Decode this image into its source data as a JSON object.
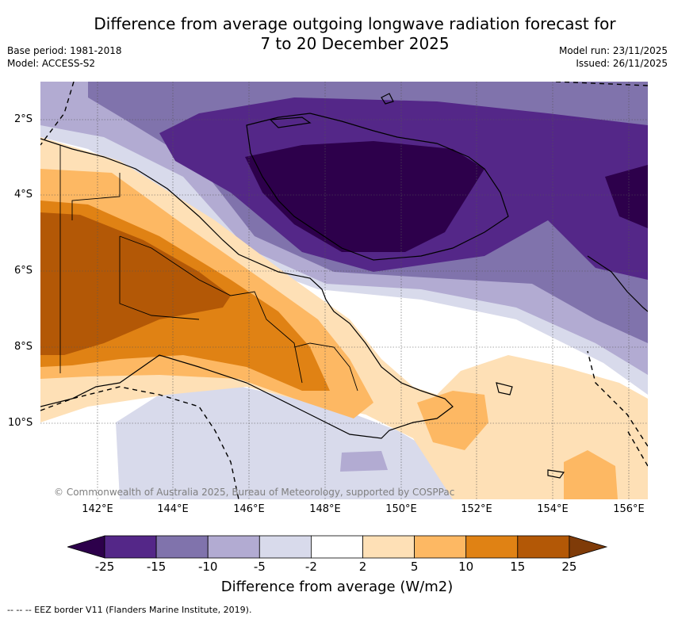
{
  "title": {
    "line1": "Difference from average outgoing longwave radiation forecast for",
    "line2": "7 to 20 December 2025"
  },
  "meta": {
    "base_period": "Base period: 1981-2018",
    "model": "Model: ACCESS-S2",
    "model_run": "Model run: 23/11/2025",
    "issued": "Issued: 26/11/2025"
  },
  "map": {
    "copyright": "© Commonwealth of Australia 2025, Bureau of Meteorology, supported by COSPPac",
    "lat_labels": [
      "2°S",
      "4°S",
      "6°S",
      "8°S",
      "10°S"
    ],
    "lon_labels": [
      "142°E",
      "144°E",
      "146°E",
      "148°E",
      "150°E",
      "152°E",
      "154°E",
      "156°E"
    ]
  },
  "colorbar": {
    "ticks": [
      "-25",
      "-15",
      "-10",
      "-5",
      "-2",
      "2",
      "5",
      "10",
      "15",
      "25"
    ],
    "colors": [
      "#2d004b",
      "#542788",
      "#8073ac",
      "#b2abd2",
      "#d8daeb",
      "#ffffff",
      "#fee0b6",
      "#fdb863",
      "#e08214",
      "#b35806",
      "#7f3b08"
    ],
    "label": "Difference from average (W/m2)"
  },
  "footnote": "--  --  -- EEZ border V11 (Flanders Marine Institute, 2019)."
}
